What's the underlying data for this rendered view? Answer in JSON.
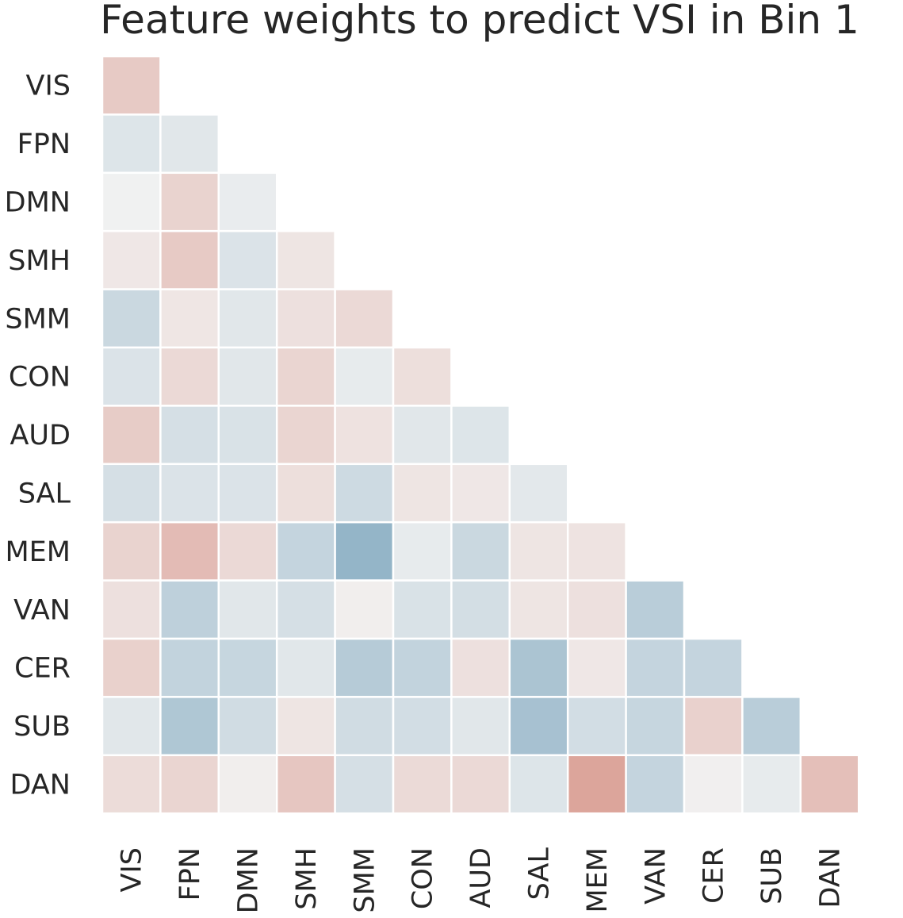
{
  "chart_data": {
    "type": "heatmap",
    "layout": "lower-triangle",
    "title": "Feature weights to predict VSI in Bin 1",
    "xlabel": "",
    "ylabel": "",
    "labels": [
      "VIS",
      "FPN",
      "DMN",
      "SMH",
      "SMM",
      "CON",
      "AUD",
      "SAL",
      "MEM",
      "VAN",
      "CER",
      "SUB",
      "DAN"
    ],
    "colormap": "diverging blue (negative) - light gray (zero) - red (positive)",
    "colors": {
      "negative": "#7fa7bf",
      "neutral": "#f2f2f2",
      "positive": "#d99a8f"
    },
    "colorbar": false,
    "values": [
      [
        0.45
      ],
      [
        -0.18,
        -0.15
      ],
      [
        -0.02,
        0.35,
        -0.08
      ],
      [
        0.12,
        0.45,
        -0.2,
        0.15
      ],
      [
        -0.35,
        0.14,
        -0.15,
        0.2,
        0.28
      ],
      [
        -0.2,
        0.28,
        -0.15,
        0.33,
        -0.1,
        0.22
      ],
      [
        0.43,
        -0.25,
        -0.22,
        0.33,
        0.18,
        -0.15,
        -0.18
      ],
      [
        -0.25,
        -0.2,
        -0.2,
        0.22,
        -0.32,
        0.15,
        0.12,
        -0.13
      ],
      [
        0.35,
        0.62,
        0.28,
        -0.4,
        -0.82,
        -0.1,
        -0.35,
        0.15,
        0.17
      ],
      [
        0.2,
        -0.45,
        -0.15,
        -0.25,
        0.05,
        -0.22,
        -0.27,
        0.15,
        0.2,
        -0.5
      ],
      [
        0.38,
        -0.42,
        -0.38,
        -0.15,
        -0.52,
        -0.42,
        0.2,
        -0.62,
        0.12,
        -0.4,
        -0.4
      ],
      [
        -0.15,
        -0.58,
        -0.3,
        0.15,
        -0.3,
        -0.28,
        -0.15,
        -0.65,
        -0.28,
        -0.38,
        0.37,
        -0.5
      ],
      [
        0.25,
        0.33,
        0.05,
        0.5,
        -0.25,
        0.27,
        0.28,
        -0.18,
        0.88,
        -0.4,
        0.03,
        -0.1,
        0.58
      ]
    ]
  }
}
